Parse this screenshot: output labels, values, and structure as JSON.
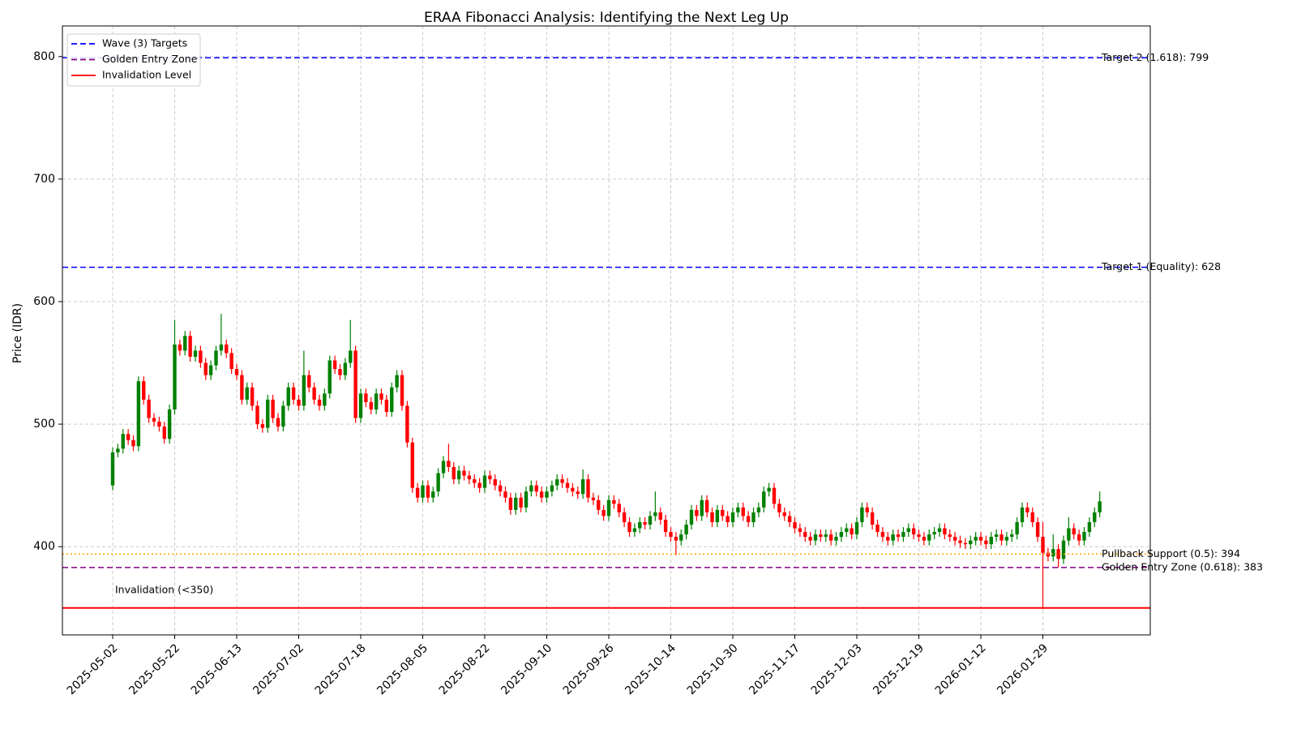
{
  "chart_data": {
    "type": "candlestick",
    "title": "ERAA Fibonacci Analysis: Identifying the Next Leg Up",
    "y_label": "Price (IDR)",
    "ylim": [
      328,
      825
    ],
    "yticks": [
      400,
      500,
      600,
      700,
      800
    ],
    "grid": true,
    "legend_position": "upper left",
    "up_color": "green",
    "down_color": "red",
    "categories": [
      "2025-05-02",
      null,
      null,
      null,
      null,
      null,
      null,
      null,
      null,
      null,
      null,
      null,
      "2025-05-22",
      null,
      null,
      null,
      null,
      null,
      null,
      null,
      null,
      null,
      null,
      null,
      "2025-06-13",
      null,
      null,
      null,
      null,
      null,
      null,
      null,
      null,
      null,
      null,
      null,
      "2025-07-02",
      null,
      null,
      null,
      null,
      null,
      null,
      null,
      null,
      null,
      null,
      null,
      "2025-07-18",
      null,
      null,
      null,
      null,
      null,
      null,
      null,
      null,
      null,
      null,
      null,
      "2025-08-05",
      null,
      null,
      null,
      null,
      null,
      null,
      null,
      null,
      null,
      null,
      null,
      "2025-08-22",
      null,
      null,
      null,
      null,
      null,
      null,
      null,
      null,
      null,
      null,
      null,
      "2025-09-10",
      null,
      null,
      null,
      null,
      null,
      null,
      null,
      null,
      null,
      null,
      null,
      "2025-09-26",
      null,
      null,
      null,
      null,
      null,
      null,
      null,
      null,
      null,
      null,
      null,
      "2025-10-14",
      null,
      null,
      null,
      null,
      null,
      null,
      null,
      null,
      null,
      null,
      null,
      "2025-10-30",
      null,
      null,
      null,
      null,
      null,
      null,
      null,
      null,
      null,
      null,
      null,
      "2025-11-17",
      null,
      null,
      null,
      null,
      null,
      null,
      null,
      null,
      null,
      null,
      null,
      "2025-12-03",
      null,
      null,
      null,
      null,
      null,
      null,
      null,
      null,
      null,
      null,
      null,
      "2025-12-19",
      null,
      null,
      null,
      null,
      null,
      null,
      null,
      null,
      null,
      null,
      null,
      "2026-01-12",
      null,
      null,
      null,
      null,
      null,
      null,
      null,
      null,
      null,
      null,
      null,
      "2026-01-29",
      null,
      null,
      null,
      null,
      null,
      null,
      null,
      null,
      null,
      null,
      null
    ],
    "open": [
      450,
      477,
      480,
      492,
      487,
      482,
      535,
      520,
      505,
      502,
      498,
      488,
      512,
      565,
      560,
      572,
      555,
      560,
      550,
      540,
      548,
      560,
      565,
      558,
      545,
      540,
      520,
      530,
      515,
      500,
      497,
      520,
      505,
      498,
      515,
      530,
      520,
      515,
      540,
      530,
      520,
      515,
      525,
      552,
      545,
      540,
      550,
      560,
      505,
      525,
      518,
      512,
      525,
      520,
      510,
      530,
      540,
      515,
      485,
      448,
      440,
      450,
      440,
      445,
      460,
      470,
      465,
      455,
      462,
      458,
      455,
      452,
      448,
      458,
      455,
      450,
      445,
      440,
      430,
      440,
      432,
      445,
      450,
      445,
      440,
      445,
      450,
      455,
      452,
      448,
      445,
      443,
      455,
      440,
      438,
      430,
      425,
      438,
      435,
      428,
      420,
      412,
      415,
      420,
      418,
      425,
      428,
      422,
      412,
      408,
      405,
      410,
      418,
      430,
      425,
      438,
      428,
      420,
      430,
      425,
      420,
      428,
      432,
      425,
      420,
      428,
      432,
      445,
      448,
      435,
      428,
      425,
      420,
      415,
      412,
      408,
      405,
      410,
      408,
      410,
      405,
      408,
      412,
      415,
      410,
      420,
      432,
      428,
      418,
      412,
      408,
      405,
      410,
      408,
      412,
      415,
      410,
      408,
      405,
      410,
      412,
      415,
      410,
      408,
      405,
      403,
      402,
      405,
      408,
      405,
      402,
      408,
      410,
      405,
      408,
      410,
      420,
      432,
      428,
      420,
      408,
      395,
      392,
      398,
      390,
      405,
      415,
      410,
      405,
      412,
      420,
      428
    ],
    "high": [
      481,
      484,
      496,
      496,
      491,
      539,
      539,
      524,
      509,
      506,
      502,
      516,
      585,
      569,
      576,
      576,
      564,
      564,
      554,
      552,
      564,
      590,
      569,
      562,
      549,
      544,
      534,
      534,
      519,
      504,
      524,
      524,
      509,
      519,
      534,
      534,
      524,
      560,
      544,
      534,
      524,
      529,
      556,
      556,
      549,
      554,
      585,
      564,
      529,
      529,
      522,
      529,
      529,
      524,
      534,
      544,
      544,
      519,
      489,
      452,
      454,
      454,
      449,
      464,
      474,
      484,
      469,
      466,
      466,
      462,
      459,
      456,
      462,
      462,
      459,
      454,
      449,
      444,
      444,
      444,
      449,
      454,
      454,
      449,
      449,
      454,
      459,
      459,
      456,
      452,
      449,
      463,
      459,
      444,
      442,
      434,
      442,
      442,
      439,
      432,
      424,
      419,
      424,
      424,
      429,
      445,
      432,
      426,
      416,
      412,
      414,
      422,
      434,
      434,
      442,
      442,
      432,
      434,
      434,
      429,
      432,
      436,
      436,
      429,
      432,
      436,
      449,
      452,
      452,
      439,
      432,
      429,
      424,
      419,
      416,
      412,
      414,
      414,
      414,
      414,
      412,
      416,
      419,
      419,
      424,
      436,
      436,
      432,
      422,
      416,
      412,
      414,
      414,
      416,
      419,
      419,
      414,
      412,
      414,
      416,
      419,
      419,
      414,
      412,
      409,
      407,
      409,
      412,
      412,
      409,
      412,
      414,
      414,
      412,
      414,
      424,
      436,
      436,
      432,
      424,
      420,
      399,
      410,
      402,
      409,
      424,
      419,
      414,
      416,
      424,
      432,
      445
    ],
    "low": [
      446,
      473,
      476,
      483,
      478,
      478,
      516,
      501,
      498,
      494,
      484,
      484,
      508,
      556,
      556,
      551,
      551,
      546,
      536,
      536,
      544,
      556,
      554,
      541,
      536,
      516,
      516,
      511,
      496,
      493,
      493,
      501,
      494,
      494,
      511,
      516,
      511,
      511,
      526,
      516,
      511,
      511,
      521,
      541,
      536,
      536,
      546,
      501,
      501,
      514,
      508,
      508,
      516,
      506,
      506,
      526,
      511,
      481,
      444,
      436,
      436,
      436,
      436,
      441,
      456,
      461,
      451,
      451,
      454,
      451,
      448,
      444,
      444,
      451,
      446,
      441,
      436,
      426,
      426,
      428,
      428,
      441,
      441,
      436,
      436,
      441,
      446,
      448,
      444,
      441,
      439,
      439,
      436,
      434,
      426,
      421,
      421,
      431,
      424,
      416,
      408,
      408,
      411,
      414,
      414,
      421,
      418,
      408,
      404,
      393,
      401,
      406,
      414,
      421,
      421,
      424,
      416,
      416,
      421,
      416,
      416,
      424,
      421,
      416,
      416,
      424,
      428,
      441,
      431,
      424,
      421,
      416,
      411,
      408,
      404,
      401,
      401,
      404,
      404,
      401,
      401,
      404,
      408,
      406,
      406,
      416,
      424,
      414,
      408,
      404,
      401,
      401,
      404,
      404,
      408,
      406,
      404,
      401,
      401,
      406,
      408,
      406,
      404,
      401,
      399,
      398,
      398,
      401,
      401,
      398,
      398,
      404,
      401,
      401,
      404,
      406,
      416,
      424,
      416,
      404,
      349,
      388,
      388,
      383,
      386,
      401,
      406,
      401,
      401,
      408,
      416,
      424
    ],
    "close": [
      477,
      480,
      492,
      487,
      482,
      535,
      520,
      505,
      502,
      498,
      488,
      512,
      565,
      560,
      572,
      555,
      560,
      550,
      540,
      548,
      560,
      565,
      558,
      545,
      540,
      520,
      530,
      515,
      500,
      497,
      520,
      505,
      498,
      515,
      530,
      520,
      515,
      540,
      530,
      520,
      515,
      525,
      552,
      545,
      540,
      550,
      560,
      505,
      525,
      518,
      512,
      525,
      520,
      510,
      530,
      540,
      515,
      485,
      448,
      440,
      450,
      440,
      445,
      460,
      470,
      465,
      455,
      462,
      458,
      455,
      452,
      448,
      458,
      455,
      450,
      445,
      440,
      430,
      440,
      432,
      445,
      450,
      445,
      440,
      445,
      450,
      455,
      452,
      448,
      445,
      443,
      455,
      440,
      438,
      430,
      425,
      438,
      435,
      428,
      420,
      412,
      415,
      420,
      418,
      425,
      428,
      422,
      412,
      408,
      405,
      410,
      418,
      430,
      425,
      438,
      428,
      420,
      430,
      425,
      420,
      428,
      432,
      425,
      420,
      428,
      432,
      445,
      448,
      435,
      428,
      425,
      420,
      415,
      412,
      408,
      405,
      410,
      408,
      410,
      405,
      408,
      412,
      415,
      410,
      420,
      432,
      428,
      418,
      412,
      408,
      405,
      410,
      408,
      412,
      415,
      410,
      408,
      405,
      410,
      412,
      415,
      410,
      408,
      405,
      403,
      402,
      405,
      408,
      405,
      402,
      408,
      410,
      405,
      408,
      410,
      420,
      432,
      428,
      420,
      408,
      395,
      392,
      398,
      390,
      405,
      415,
      410,
      405,
      412,
      420,
      428,
      437
    ],
    "levels": [
      {
        "value": 799,
        "label": "Target 2 (1.618): 799",
        "color": "blue",
        "dash": "dashed"
      },
      {
        "value": 628,
        "label": "Target 1 (Equality): 628",
        "color": "blue",
        "dash": "dashed"
      },
      {
        "value": 394,
        "label": "Pullback Support (0.5): 394",
        "color": "orange",
        "dash": "dotted"
      },
      {
        "value": 383,
        "label": "Golden Entry Zone (0.618): 383",
        "color": "purple",
        "dash": "dashed"
      },
      {
        "value": 350,
        "label": "Invalidation (<350)",
        "color": "red",
        "dash": "solid"
      }
    ],
    "legend": [
      {
        "name": "Wave (3) Targets",
        "color": "blue",
        "dash": "dashed"
      },
      {
        "name": "Golden Entry Zone",
        "color": "purple",
        "dash": "dashed"
      },
      {
        "name": "Invalidation Level",
        "color": "red",
        "dash": "solid"
      }
    ]
  }
}
